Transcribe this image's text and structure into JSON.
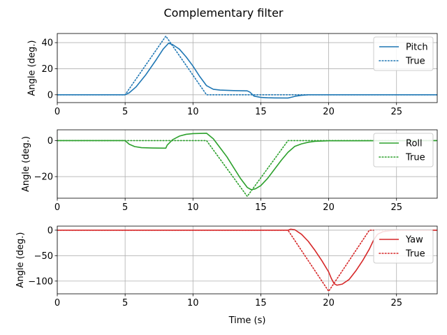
{
  "figure": {
    "title": "Complementary filter"
  },
  "chart_data": [
    {
      "type": "line",
      "title": "",
      "xlabel": "",
      "ylabel": "Angle (deg.)",
      "xlim": [
        0,
        28
      ],
      "ylim": [
        -6,
        47
      ],
      "xticks": [
        0,
        5,
        10,
        15,
        20,
        25
      ],
      "yticks": [
        0,
        20,
        40
      ],
      "grid": true,
      "legend_position": "upper right",
      "series": [
        {
          "name": "Pitch",
          "style": "solid",
          "color": "#1f77b4",
          "points": [
            [
              0,
              0
            ],
            [
              5,
              0
            ],
            [
              5.3,
              1.5
            ],
            [
              5.8,
              6
            ],
            [
              6.5,
              15
            ],
            [
              7.3,
              27
            ],
            [
              7.8,
              35
            ],
            [
              8.2,
              39.5
            ],
            [
              8.5,
              38.5
            ],
            [
              9,
              35
            ],
            [
              9.5,
              29
            ],
            [
              10,
              22
            ],
            [
              10.5,
              14
            ],
            [
              11,
              7
            ],
            [
              11.5,
              4.2
            ],
            [
              12,
              3.6
            ],
            [
              13,
              3.2
            ],
            [
              14,
              3.0
            ],
            [
              14.2,
              2.0
            ],
            [
              14.5,
              -1.0
            ],
            [
              15,
              -2.0
            ],
            [
              15.5,
              -2.3
            ],
            [
              16,
              -2.4
            ],
            [
              17,
              -2.5
            ],
            [
              17.3,
              -1.8
            ],
            [
              17.6,
              -1.0
            ],
            [
              18,
              -0.4
            ],
            [
              18.5,
              0
            ],
            [
              28,
              0
            ]
          ]
        },
        {
          "name": "True",
          "style": "dotted",
          "color": "#1f77b4",
          "points": [
            [
              0,
              0
            ],
            [
              5,
              0
            ],
            [
              8,
              45
            ],
            [
              11,
              0
            ],
            [
              28,
              0
            ]
          ]
        }
      ]
    },
    {
      "type": "line",
      "title": "",
      "xlabel": "",
      "ylabel": "Angle (deg.)",
      "xlim": [
        0,
        28
      ],
      "ylim": [
        -32,
        6
      ],
      "xticks": [
        0,
        5,
        10,
        15,
        20,
        25
      ],
      "yticks": [
        -20,
        0
      ],
      "grid": true,
      "legend_position": "upper right",
      "series": [
        {
          "name": "Roll",
          "style": "solid",
          "color": "#2ca02c",
          "points": [
            [
              0,
              0
            ],
            [
              5,
              0
            ],
            [
              5.3,
              -2
            ],
            [
              5.7,
              -3.3
            ],
            [
              6.2,
              -3.9
            ],
            [
              7,
              -4.1
            ],
            [
              8,
              -4.2
            ],
            [
              8.1,
              -2.5
            ],
            [
              8.5,
              0.5
            ],
            [
              9,
              2.5
            ],
            [
              9.5,
              3.5
            ],
            [
              10,
              3.9
            ],
            [
              11,
              4.1
            ],
            [
              11.5,
              1
            ],
            [
              12,
              -4
            ],
            [
              12.5,
              -9
            ],
            [
              13,
              -15
            ],
            [
              13.5,
              -21
            ],
            [
              14,
              -26
            ],
            [
              14.3,
              -27.3
            ],
            [
              14.6,
              -26.8
            ],
            [
              15,
              -25
            ],
            [
              15.5,
              -21
            ],
            [
              16,
              -16
            ],
            [
              16.5,
              -11
            ],
            [
              17,
              -6.5
            ],
            [
              17.5,
              -3.2
            ],
            [
              18,
              -1.8
            ],
            [
              18.5,
              -0.9
            ],
            [
              19,
              -0.4
            ],
            [
              20,
              -0.1
            ],
            [
              28,
              0
            ]
          ]
        },
        {
          "name": "True",
          "style": "dotted",
          "color": "#2ca02c",
          "points": [
            [
              0,
              0
            ],
            [
              11,
              0
            ],
            [
              14,
              -31
            ],
            [
              17,
              0
            ],
            [
              28,
              0
            ]
          ]
        }
      ]
    },
    {
      "type": "line",
      "title": "",
      "xlabel": "Time (s)",
      "ylabel": "Angle (deg.)",
      "xlim": [
        0,
        28
      ],
      "ylim": [
        -125,
        8
      ],
      "xticks": [
        0,
        5,
        10,
        15,
        20,
        25
      ],
      "yticks": [
        -100,
        -50,
        0
      ],
      "grid": true,
      "legend_position": "upper right",
      "series": [
        {
          "name": "Yaw",
          "style": "solid",
          "color": "#d62728",
          "points": [
            [
              0,
              0
            ],
            [
              17,
              0
            ],
            [
              17.2,
              2
            ],
            [
              17.5,
              1
            ],
            [
              18,
              -8
            ],
            [
              18.5,
              -22
            ],
            [
              19,
              -40
            ],
            [
              19.5,
              -60
            ],
            [
              20,
              -82
            ],
            [
              20.2,
              -95
            ],
            [
              20.4,
              -105
            ],
            [
              20.6,
              -108
            ],
            [
              21,
              -106
            ],
            [
              21.5,
              -97
            ],
            [
              22,
              -80
            ],
            [
              22.5,
              -60
            ],
            [
              23,
              -37
            ],
            [
              23.3,
              -20
            ],
            [
              23.6,
              -8
            ],
            [
              24,
              -3
            ],
            [
              24.5,
              -1
            ],
            [
              25,
              0
            ],
            [
              28,
              0
            ]
          ]
        },
        {
          "name": "True",
          "style": "dotted",
          "color": "#d62728",
          "points": [
            [
              0,
              0
            ],
            [
              17,
              0
            ],
            [
              20,
              -120
            ],
            [
              23,
              0
            ],
            [
              28,
              0
            ]
          ]
        }
      ]
    }
  ]
}
